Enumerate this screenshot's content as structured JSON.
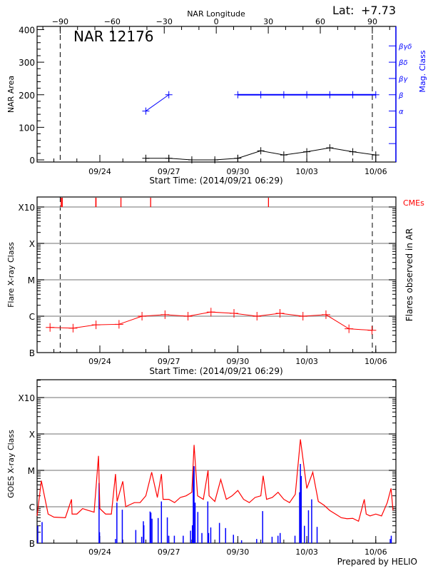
{
  "colors": {
    "area": "#000000",
    "mag_class": "#0000ff",
    "flare": "#ff0000",
    "cme": "#ff0000",
    "goes_long": "#ff0000",
    "goes_short": "#0000ff",
    "grid": "#a0a0a0"
  },
  "header": {
    "lat_label": "Lat:",
    "lat_value": "+7.73",
    "region_title": "NAR 12176"
  },
  "footer": {
    "credit": "Prepared by HELIO"
  },
  "chart_data": [
    {
      "type": "line",
      "panel": "nar",
      "xlim": [
        "09/21 06:29",
        "10/06 21:00"
      ],
      "year": 2014,
      "xticks": [
        "09/24",
        "09/27",
        "09/30",
        "10/03",
        "10/06"
      ],
      "xlabel": "Start Time: (2014/09/21 06:29)",
      "top_axis": {
        "label": "NAR Longitude",
        "ticks": [
          -90,
          -60,
          -30,
          0,
          30,
          60,
          90
        ],
        "zero_time": "09/29 01:30",
        "deg_per_day": 13.26,
        "limb_lines": [
          -90,
          90
        ]
      },
      "ylabel": "NAR Area",
      "ylim": [
        0,
        409
      ],
      "yticks": [
        0,
        100,
        200,
        300,
        400
      ],
      "area_series": [
        [
          "09/26 00:00",
          5
        ],
        [
          "09/27 00:00",
          5
        ],
        [
          "09/28 00:00",
          0
        ],
        [
          "09/29 00:00",
          0
        ],
        [
          "09/30 00:00",
          5
        ],
        [
          "10/01 00:00",
          28
        ],
        [
          "10/02 00:00",
          15
        ],
        [
          "10/03 00:00",
          25
        ],
        [
          "10/04 00:00",
          37
        ],
        [
          "10/05 00:00",
          25
        ],
        [
          "10/06 00:00",
          15
        ]
      ],
      "right_axis": {
        "label": "Mag. Class",
        "classes": [
          "α",
          "β",
          "βγ",
          "βδ",
          "βγδ"
        ]
      },
      "mag_series": [
        [
          [
            "09/26 00:00",
            "α"
          ],
          [
            "09/27 00:00",
            "β"
          ]
        ],
        [
          [
            "09/30 00:00",
            "β"
          ],
          [
            "10/01 00:00",
            "β"
          ],
          [
            "10/02 00:00",
            "β"
          ],
          [
            "10/03 00:00",
            "β"
          ],
          [
            "10/04 00:00",
            "β"
          ],
          [
            "10/05 00:00",
            "β"
          ],
          [
            "10/06 00:00",
            "β"
          ]
        ]
      ]
    },
    {
      "type": "line",
      "panel": "flares",
      "xlabel": "Start Time: (2014/09/21 06:29)",
      "ylabel": "Flare X-ray Class",
      "right_label": "Flares observed in AR",
      "cme_label": "CMEs",
      "yscale": "log",
      "yticks": [
        "B",
        "C",
        "M",
        "X",
        "X10"
      ],
      "grid": true,
      "flare_series": [
        [
          "09/21 20:00",
          "B4.9"
        ],
        [
          "09/22 20:00",
          "B4.7"
        ],
        [
          "09/23 20:00",
          "B5.8"
        ],
        [
          "09/24 20:00",
          "B6.0"
        ],
        [
          "09/25 20:00",
          "C1.0"
        ],
        [
          "09/26 20:00",
          "C1.1"
        ],
        [
          "09/27 20:00",
          "C1.0"
        ],
        [
          "09/28 20:00",
          "C1.3"
        ],
        [
          "09/29 20:00",
          "C1.2"
        ],
        [
          "09/30 20:00",
          "C1.0"
        ],
        [
          "10/01 20:00",
          "C1.2"
        ],
        [
          "10/02 20:00",
          "C1.0"
        ],
        [
          "10/03 20:00",
          "C1.1"
        ],
        [
          "10/04 20:00",
          "B4.5"
        ],
        [
          "10/05 20:00",
          "B4.1"
        ]
      ],
      "cmes": [
        "09/22 07:40",
        "09/22 08:45",
        "09/23 19:45",
        "09/23 20:00",
        "09/24 22:00",
        "09/26 05:00",
        "10/01 08:00"
      ]
    },
    {
      "type": "line",
      "panel": "goes",
      "ylabel": "GOES X-ray Class",
      "yscale": "log",
      "yticks": [
        "B",
        "C",
        "M",
        "X",
        "X10"
      ],
      "grid": true,
      "goes_long": [
        [
          "09/21 06:29",
          "B5.6"
        ],
        [
          "09/21 10:54",
          "C5.2"
        ],
        [
          "09/21 18:00",
          "B6.3"
        ],
        [
          "09/22 00:00",
          "B5.2"
        ],
        [
          "09/22 12:00",
          "B5.0"
        ],
        [
          "09/22 18:25",
          "C1.6"
        ],
        [
          "09/22 19:00",
          "B6.3"
        ],
        [
          "09/23 00:00",
          "B6.3"
        ],
        [
          "09/23 06:00",
          "B8.9"
        ],
        [
          "09/23 12:00",
          "B7.9"
        ],
        [
          "09/23 18:00",
          "B7.1"
        ],
        [
          "09/23 22:35",
          "M2.5"
        ],
        [
          "09/24 00:00",
          "B8.9"
        ],
        [
          "09/24 06:00",
          "B6.3"
        ],
        [
          "09/24 12:00",
          "B6.3"
        ],
        [
          "09/24 16:20",
          "C7.9"
        ],
        [
          "09/24 18:00",
          "C1.4"
        ],
        [
          "09/24 23:55",
          "C5.0"
        ],
        [
          "09/25 03:00",
          "C1.0"
        ],
        [
          "09/25 06:00",
          "C1.1"
        ],
        [
          "09/25 12:00",
          "C1.3"
        ],
        [
          "09/25 18:00",
          "C1.3"
        ],
        [
          "09/26 00:00",
          "C2.0"
        ],
        [
          "09/26 06:05",
          "C8.9"
        ],
        [
          "09/26 12:00",
          "C1.8"
        ],
        [
          "09/26 16:15",
          "C7.9"
        ],
        [
          "09/26 18:00",
          "C1.6"
        ],
        [
          "09/27 00:00",
          "C1.6"
        ],
        [
          "09/27 06:00",
          "C1.3"
        ],
        [
          "09/27 12:00",
          "C1.8"
        ],
        [
          "09/27 18:00",
          "C2.0"
        ],
        [
          "09/28 00:00",
          "C2.5"
        ],
        [
          "09/28 02:20",
          "M5.0"
        ],
        [
          "09/28 06:00",
          "C2.0"
        ],
        [
          "09/28 12:00",
          "C1.6"
        ],
        [
          "09/28 16:55",
          "M1.0"
        ],
        [
          "09/28 18:00",
          "C2.0"
        ],
        [
          "09/29 00:00",
          "C1.4"
        ],
        [
          "09/29 06:10",
          "C5.6"
        ],
        [
          "09/29 12:00",
          "C1.6"
        ],
        [
          "09/29 18:00",
          "C2.0"
        ],
        [
          "09/30 00:00",
          "C2.8"
        ],
        [
          "09/30 06:00",
          "C1.6"
        ],
        [
          "09/30 12:00",
          "C1.3"
        ],
        [
          "09/30 18:00",
          "C1.8"
        ],
        [
          "10/01 00:00",
          "C2.0"
        ],
        [
          "10/01 02:25",
          "C7.1"
        ],
        [
          "10/01 06:00",
          "C1.6"
        ],
        [
          "10/01 12:00",
          "C1.8"
        ],
        [
          "10/01 18:00",
          "C2.5"
        ],
        [
          "10/02 00:00",
          "C1.6"
        ],
        [
          "10/02 06:00",
          "C1.3"
        ],
        [
          "10/02 12:00",
          "C2.2"
        ],
        [
          "10/02 17:20",
          "M7.1"
        ],
        [
          "10/03 00:00",
          "C3.2"
        ],
        [
          "10/03 06:15",
          "C8.9"
        ],
        [
          "10/03 12:00",
          "C1.4"
        ],
        [
          "10/03 18:00",
          "C1.1"
        ],
        [
          "10/04 00:00",
          "B7.9"
        ],
        [
          "10/04 06:00",
          "B6.3"
        ],
        [
          "10/04 12:00",
          "B5.0"
        ],
        [
          "10/04 18:00",
          "B4.7"
        ],
        [
          "10/05 00:00",
          "B4.8"
        ],
        [
          "10/05 06:00",
          "B4.0"
        ],
        [
          "10/05 12:00",
          "C1.6"
        ],
        [
          "10/05 14:00",
          "B6.3"
        ],
        [
          "10/05 18:00",
          "B5.6"
        ],
        [
          "10/06 00:00",
          "B6.3"
        ],
        [
          "10/06 06:00",
          "B5.6"
        ],
        [
          "10/06 12:00",
          "C1.3"
        ],
        [
          "10/06 15:55",
          "C3.2"
        ],
        [
          "10/06 18:00",
          "B7.9"
        ]
      ],
      "goes_short": [
        [
          "09/21 07:12",
          "B3.0"
        ],
        [
          "09/21 11:42",
          "B3.8"
        ],
        [
          "09/23 23:10",
          "C4.5"
        ],
        [
          "09/23 23:40",
          "B2.0"
        ],
        [
          "09/24 16:20",
          "B1.3"
        ],
        [
          "09/24 17:45",
          "C1.3"
        ],
        [
          "09/24 23:25",
          "B8.3"
        ],
        [
          "09/25 13:30",
          "B2.3"
        ],
        [
          "09/25 19:40",
          "B1.5"
        ],
        [
          "09/25 21:25",
          "B4.0"
        ],
        [
          "09/25 21:55",
          "B3.1"
        ],
        [
          "09/26 04:25",
          "B7.4"
        ],
        [
          "09/26 05:15",
          "B6.9"
        ],
        [
          "09/26 06:25",
          "B4.7"
        ],
        [
          "09/26 12:50",
          "B4.9"
        ],
        [
          "09/26 16:15",
          "C1.4"
        ],
        [
          "09/26 22:25",
          "B5.1"
        ],
        [
          "09/26 23:50",
          "B1.6"
        ],
        [
          "09/27 05:45",
          "B1.6"
        ],
        [
          "09/27 15:00",
          "B1.6"
        ],
        [
          "09/27 22:40",
          "B2.2"
        ],
        [
          "09/28 00:35",
          "B3.1"
        ],
        [
          "09/28 01:30",
          "M1.3"
        ],
        [
          "09/28 02:20",
          "M1.3"
        ],
        [
          "09/28 03:25",
          "C1.3"
        ],
        [
          "09/28 06:15",
          "B7.2"
        ],
        [
          "09/28 10:30",
          "B1.9"
        ],
        [
          "09/28 16:40",
          "C1.4"
        ],
        [
          "09/28 17:30",
          "B1.9"
        ],
        [
          "09/28 19:45",
          "B2.7"
        ],
        [
          "09/29 04:50",
          "B3.6"
        ],
        [
          "09/29 11:15",
          "B2.6"
        ],
        [
          "09/29 19:25",
          "B1.7"
        ],
        [
          "09/30 03:55",
          "B1.2"
        ],
        [
          "09/30 19:40",
          "B1.3"
        ],
        [
          "10/01 01:55",
          "B7.6"
        ],
        [
          "10/01 11:45",
          "B1.5"
        ],
        [
          "10/01 17:55",
          "B1.6"
        ],
        [
          "10/01 20:10",
          "B1.9"
        ],
        [
          "10/02 11:40",
          "B1.6"
        ],
        [
          "10/02 16:30",
          "C2.5"
        ],
        [
          "10/02 17:20",
          "M1.5"
        ],
        [
          "10/02 18:10",
          "C7.0"
        ],
        [
          "10/02 21:30",
          "B3.0"
        ],
        [
          "10/03 01:45",
          "B8.0"
        ],
        [
          "10/03 05:05",
          "C1.6"
        ],
        [
          "10/03 10:45",
          "B2.8"
        ],
        [
          "10/06 15:05",
          "B1.3"
        ],
        [
          "10/06 16:10",
          "B1.6"
        ]
      ]
    }
  ]
}
